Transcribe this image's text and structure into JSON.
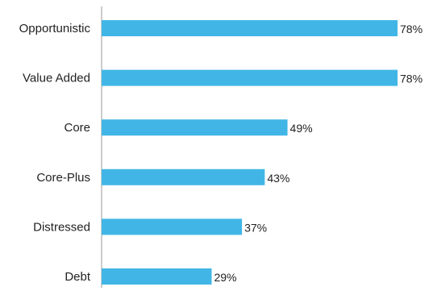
{
  "chart_data": {
    "type": "bar",
    "orientation": "horizontal",
    "categories": [
      "Opportunistic",
      "Value Added",
      "Core",
      "Core-Plus",
      "Distressed",
      "Debt"
    ],
    "values": [
      78,
      78,
      49,
      43,
      37,
      29
    ],
    "value_labels": [
      "78%",
      "78%",
      "49%",
      "43%",
      "37%",
      "29%"
    ],
    "xlim": [
      0,
      78
    ],
    "grid": false,
    "legend": "none",
    "colors": {
      "bar": "#41b6e6",
      "axis": "#9a9a9a",
      "text": "#222222"
    }
  }
}
